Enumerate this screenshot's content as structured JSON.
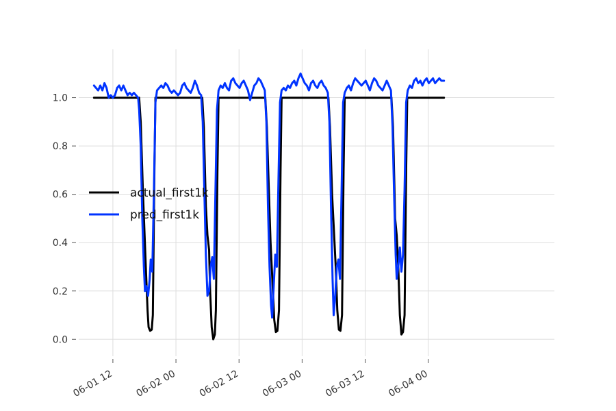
{
  "chart_data": {
    "type": "line",
    "title": "",
    "xlabel": "",
    "ylabel": "",
    "x_range_hours": [
      -6.5,
      84
    ],
    "ylim": [
      -0.07,
      1.2
    ],
    "grid": true,
    "legend_placement": "center-left",
    "x_ticks": [
      {
        "label": "06-01 12",
        "hours": 0
      },
      {
        "label": "06-02 00",
        "hours": 12
      },
      {
        "label": "06-02 12",
        "hours": 24
      },
      {
        "label": "06-03 00",
        "hours": 36
      },
      {
        "label": "06-03 12",
        "hours": 48
      },
      {
        "label": "06-04 00",
        "hours": 60
      }
    ],
    "y_ticks": [
      "0.0",
      "0.2",
      "0.4",
      "0.6",
      "0.8",
      "1.0"
    ],
    "y_tick_values": [
      0.0,
      0.2,
      0.4,
      0.6,
      0.8,
      1.0
    ],
    "series": [
      {
        "name": "actual_first1k",
        "color": "#000000",
        "points": [
          [
            -3.6,
            1.0
          ],
          [
            5.0,
            1.0
          ],
          [
            5.3,
            0.9
          ],
          [
            5.7,
            0.62
          ],
          [
            6.0,
            0.45
          ],
          [
            6.3,
            0.28
          ],
          [
            6.6,
            0.12
          ],
          [
            6.8,
            0.05
          ],
          [
            7.1,
            0.035
          ],
          [
            7.4,
            0.04
          ],
          [
            7.6,
            0.1
          ],
          [
            7.9,
            0.7
          ],
          [
            8.1,
            1.0
          ],
          [
            17.0,
            1.0
          ],
          [
            17.3,
            0.88
          ],
          [
            17.7,
            0.55
          ],
          [
            18.0,
            0.43
          ],
          [
            18.3,
            0.37
          ],
          [
            18.5,
            0.2
          ],
          [
            18.8,
            0.05
          ],
          [
            19.1,
            0.0
          ],
          [
            19.4,
            0.02
          ],
          [
            19.6,
            0.12
          ],
          [
            19.9,
            0.7
          ],
          [
            20.1,
            1.0
          ],
          [
            29.0,
            1.0
          ],
          [
            29.3,
            0.88
          ],
          [
            29.7,
            0.6
          ],
          [
            30.0,
            0.4
          ],
          [
            30.4,
            0.22
          ],
          [
            30.7,
            0.08
          ],
          [
            31.0,
            0.03
          ],
          [
            31.3,
            0.035
          ],
          [
            31.6,
            0.12
          ],
          [
            31.9,
            0.7
          ],
          [
            32.1,
            1.0
          ],
          [
            41.0,
            1.0
          ],
          [
            41.3,
            0.88
          ],
          [
            41.7,
            0.6
          ],
          [
            42.0,
            0.47
          ],
          [
            42.4,
            0.3
          ],
          [
            42.7,
            0.12
          ],
          [
            43.0,
            0.04
          ],
          [
            43.3,
            0.035
          ],
          [
            43.6,
            0.1
          ],
          [
            43.9,
            0.7
          ],
          [
            44.1,
            1.0
          ],
          [
            53.0,
            1.0
          ],
          [
            53.3,
            0.88
          ],
          [
            53.7,
            0.5
          ],
          [
            54.0,
            0.43
          ],
          [
            54.3,
            0.3
          ],
          [
            54.6,
            0.1
          ],
          [
            54.9,
            0.02
          ],
          [
            55.2,
            0.03
          ],
          [
            55.5,
            0.1
          ],
          [
            55.8,
            0.7
          ],
          [
            56.0,
            1.0
          ],
          [
            63.0,
            1.0
          ]
        ]
      },
      {
        "name": "pred_first1k",
        "color": "#0033ff",
        "points": [
          [
            -3.6,
            1.05
          ],
          [
            -3.2,
            1.04
          ],
          [
            -2.8,
            1.03
          ],
          [
            -2.4,
            1.05
          ],
          [
            -2.0,
            1.03
          ],
          [
            -1.6,
            1.06
          ],
          [
            -1.2,
            1.04
          ],
          [
            -0.8,
            1.0
          ],
          [
            -0.4,
            1.01
          ],
          [
            0.0,
            1.0
          ],
          [
            0.4,
            1.01
          ],
          [
            0.8,
            1.04
          ],
          [
            1.2,
            1.05
          ],
          [
            1.6,
            1.03
          ],
          [
            2.0,
            1.05
          ],
          [
            2.4,
            1.03
          ],
          [
            2.8,
            1.01
          ],
          [
            3.2,
            1.02
          ],
          [
            3.6,
            1.01
          ],
          [
            4.0,
            1.02
          ],
          [
            4.4,
            1.01
          ],
          [
            4.8,
            1.0
          ],
          [
            5.0,
            0.95
          ],
          [
            5.3,
            0.8
          ],
          [
            5.6,
            0.5
          ],
          [
            5.9,
            0.3
          ],
          [
            6.1,
            0.2
          ],
          [
            6.4,
            0.22
          ],
          [
            6.7,
            0.18
          ],
          [
            7.0,
            0.25
          ],
          [
            7.2,
            0.33
          ],
          [
            7.5,
            0.28
          ],
          [
            7.8,
            0.6
          ],
          [
            8.1,
            0.98
          ],
          [
            8.4,
            1.03
          ],
          [
            8.8,
            1.04
          ],
          [
            9.2,
            1.05
          ],
          [
            9.6,
            1.04
          ],
          [
            10.0,
            1.06
          ],
          [
            10.4,
            1.05
          ],
          [
            10.8,
            1.03
          ],
          [
            11.2,
            1.02
          ],
          [
            11.6,
            1.03
          ],
          [
            12.0,
            1.02
          ],
          [
            12.4,
            1.01
          ],
          [
            12.8,
            1.02
          ],
          [
            13.2,
            1.05
          ],
          [
            13.6,
            1.06
          ],
          [
            14.0,
            1.04
          ],
          [
            14.4,
            1.03
          ],
          [
            14.8,
            1.02
          ],
          [
            15.2,
            1.04
          ],
          [
            15.6,
            1.07
          ],
          [
            16.0,
            1.05
          ],
          [
            16.4,
            1.02
          ],
          [
            16.8,
            1.01
          ],
          [
            17.1,
            0.9
          ],
          [
            17.4,
            0.62
          ],
          [
            17.7,
            0.35
          ],
          [
            18.0,
            0.18
          ],
          [
            18.3,
            0.2
          ],
          [
            18.6,
            0.3
          ],
          [
            18.9,
            0.34
          ],
          [
            19.2,
            0.25
          ],
          [
            19.5,
            0.6
          ],
          [
            19.8,
            0.95
          ],
          [
            20.1,
            1.03
          ],
          [
            20.5,
            1.05
          ],
          [
            20.9,
            1.04
          ],
          [
            21.3,
            1.06
          ],
          [
            21.7,
            1.04
          ],
          [
            22.1,
            1.03
          ],
          [
            22.5,
            1.07
          ],
          [
            22.9,
            1.08
          ],
          [
            23.3,
            1.06
          ],
          [
            23.7,
            1.05
          ],
          [
            24.1,
            1.04
          ],
          [
            24.5,
            1.06
          ],
          [
            24.9,
            1.07
          ],
          [
            25.3,
            1.05
          ],
          [
            25.7,
            1.03
          ],
          [
            26.1,
            0.99
          ],
          [
            26.5,
            1.02
          ],
          [
            26.9,
            1.05
          ],
          [
            27.3,
            1.06
          ],
          [
            27.7,
            1.08
          ],
          [
            28.1,
            1.07
          ],
          [
            28.5,
            1.05
          ],
          [
            28.9,
            1.03
          ],
          [
            29.2,
            0.9
          ],
          [
            29.5,
            0.55
          ],
          [
            29.8,
            0.3
          ],
          [
            30.1,
            0.14
          ],
          [
            30.3,
            0.09
          ],
          [
            30.6,
            0.22
          ],
          [
            30.9,
            0.35
          ],
          [
            31.2,
            0.3
          ],
          [
            31.5,
            0.65
          ],
          [
            31.8,
            0.98
          ],
          [
            32.1,
            1.03
          ],
          [
            32.5,
            1.04
          ],
          [
            32.9,
            1.03
          ],
          [
            33.3,
            1.05
          ],
          [
            33.7,
            1.04
          ],
          [
            34.1,
            1.06
          ],
          [
            34.5,
            1.07
          ],
          [
            34.9,
            1.05
          ],
          [
            35.3,
            1.08
          ],
          [
            35.7,
            1.1
          ],
          [
            36.1,
            1.08
          ],
          [
            36.5,
            1.06
          ],
          [
            36.9,
            1.05
          ],
          [
            37.3,
            1.03
          ],
          [
            37.7,
            1.06
          ],
          [
            38.1,
            1.07
          ],
          [
            38.5,
            1.05
          ],
          [
            38.9,
            1.04
          ],
          [
            39.3,
            1.06
          ],
          [
            39.7,
            1.07
          ],
          [
            40.1,
            1.05
          ],
          [
            40.5,
            1.04
          ],
          [
            40.9,
            1.02
          ],
          [
            41.2,
            0.9
          ],
          [
            41.5,
            0.55
          ],
          [
            41.8,
            0.25
          ],
          [
            42.0,
            0.1
          ],
          [
            42.3,
            0.18
          ],
          [
            42.6,
            0.3
          ],
          [
            42.9,
            0.33
          ],
          [
            43.2,
            0.25
          ],
          [
            43.5,
            0.6
          ],
          [
            43.8,
            0.98
          ],
          [
            44.1,
            1.02
          ],
          [
            44.5,
            1.04
          ],
          [
            44.9,
            1.05
          ],
          [
            45.3,
            1.03
          ],
          [
            45.7,
            1.06
          ],
          [
            46.1,
            1.08
          ],
          [
            46.5,
            1.07
          ],
          [
            46.9,
            1.06
          ],
          [
            47.3,
            1.05
          ],
          [
            47.7,
            1.06
          ],
          [
            48.1,
            1.07
          ],
          [
            48.5,
            1.05
          ],
          [
            48.9,
            1.03
          ],
          [
            49.3,
            1.06
          ],
          [
            49.7,
            1.08
          ],
          [
            50.1,
            1.07
          ],
          [
            50.5,
            1.05
          ],
          [
            50.9,
            1.04
          ],
          [
            51.3,
            1.03
          ],
          [
            51.7,
            1.05
          ],
          [
            52.1,
            1.07
          ],
          [
            52.5,
            1.05
          ],
          [
            52.9,
            1.03
          ],
          [
            53.2,
            0.88
          ],
          [
            53.5,
            0.6
          ],
          [
            53.8,
            0.35
          ],
          [
            54.0,
            0.25
          ],
          [
            54.3,
            0.3
          ],
          [
            54.6,
            0.38
          ],
          [
            54.9,
            0.28
          ],
          [
            55.2,
            0.35
          ],
          [
            55.5,
            0.62
          ],
          [
            55.8,
            0.98
          ],
          [
            56.1,
            1.03
          ],
          [
            56.5,
            1.05
          ],
          [
            56.9,
            1.04
          ],
          [
            57.3,
            1.07
          ],
          [
            57.7,
            1.08
          ],
          [
            58.1,
            1.06
          ],
          [
            58.5,
            1.07
          ],
          [
            58.9,
            1.05
          ],
          [
            59.3,
            1.07
          ],
          [
            59.7,
            1.08
          ],
          [
            60.1,
            1.06
          ],
          [
            60.5,
            1.07
          ],
          [
            60.9,
            1.08
          ],
          [
            61.3,
            1.06
          ],
          [
            61.7,
            1.07
          ],
          [
            62.1,
            1.08
          ],
          [
            62.5,
            1.07
          ],
          [
            63.0,
            1.07
          ]
        ]
      }
    ]
  }
}
